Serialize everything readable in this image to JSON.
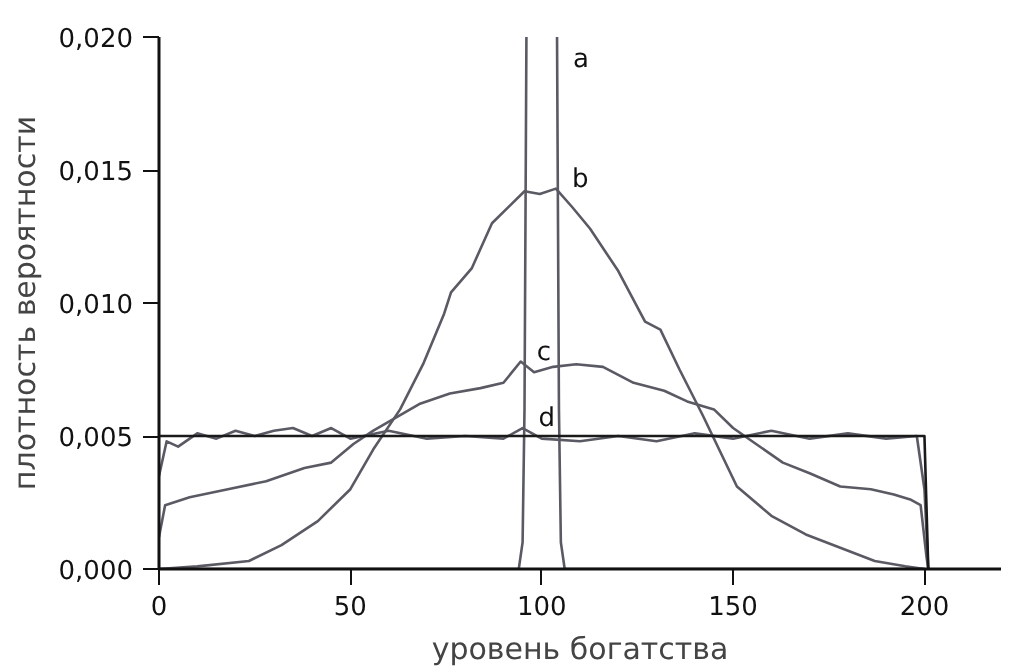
{
  "chart_data": {
    "type": "line",
    "xlabel": "уровень богатства",
    "ylabel": "плотность вероятности",
    "xlim": [
      0,
      220
    ],
    "ylim": [
      0,
      0.02
    ],
    "xticks": [
      0,
      50,
      100,
      150,
      200
    ],
    "yticks": [
      {
        "value": 0,
        "label": "0,000"
      },
      {
        "value": 0.005,
        "label": "0,005"
      },
      {
        "value": 0.01,
        "label": "0,010"
      },
      {
        "value": 0.015,
        "label": "0,015"
      },
      {
        "value": 0.02,
        "label": "0,020"
      }
    ],
    "grid": false,
    "marker": "none",
    "line_style": "solid",
    "series": [
      {
        "name": "a",
        "color": "#5a5a64",
        "x": [
          0,
          90,
          94,
          95,
          95.5,
          96,
          100,
          104,
          104.5,
          105,
          106,
          110,
          200
        ],
        "values": [
          0,
          0,
          0,
          0.001,
          0.006,
          0.02,
          null,
          0.02,
          0.006,
          0.001,
          0,
          0,
          0
        ]
      },
      {
        "name": "b",
        "color": "#5a5a64",
        "x": [
          0,
          10,
          23.5,
          32,
          41.5,
          50,
          56,
          63,
          69,
          74.5,
          76.3,
          81.7,
          87,
          95.5,
          99.5,
          103.7,
          108,
          112.6,
          120,
          127,
          131,
          136,
          142,
          151,
          160,
          169,
          178,
          187,
          195,
          200
        ],
        "values": [
          0,
          0.0001,
          0.0003,
          0.0009,
          0.0018,
          0.003,
          0.0045,
          0.006,
          0.0077,
          0.0096,
          0.0104,
          0.0113,
          0.013,
          0.0142,
          0.0141,
          0.0143,
          0.0136,
          0.0128,
          0.0112,
          0.0093,
          0.009,
          0.0075,
          0.0058,
          0.0031,
          0.002,
          0.0013,
          0.0008,
          0.0003,
          0.0001,
          0
        ]
      },
      {
        "name": "c",
        "color": "#5a5a64",
        "x": [
          0,
          1.6,
          8,
          18,
          28,
          38,
          45,
          50.8,
          56,
          62,
          68,
          76,
          84,
          90,
          94.5,
          98,
          103,
          109,
          116,
          124,
          132,
          138,
          145,
          150,
          156,
          163,
          170,
          178,
          186,
          192,
          196.5,
          199,
          200.5,
          201
        ],
        "values": [
          0.0012,
          0.0024,
          0.0027,
          0.003,
          0.0033,
          0.0038,
          0.004,
          0.0047,
          0.0052,
          0.0057,
          0.0062,
          0.0066,
          0.0068,
          0.007,
          0.0078,
          0.0074,
          0.0076,
          0.0077,
          0.0076,
          0.007,
          0.0067,
          0.0063,
          0.006,
          0.0053,
          0.0047,
          0.004,
          0.0036,
          0.0031,
          0.003,
          0.0028,
          0.0026,
          0.0024,
          0.0005,
          0
        ]
      },
      {
        "name": "d",
        "color": "#5a5a64",
        "x": [
          0,
          2,
          5,
          10,
          15,
          20,
          25,
          30,
          35,
          40,
          45,
          50,
          60,
          70,
          80,
          90,
          95,
          100,
          110,
          120,
          130,
          140,
          150,
          160,
          170,
          180,
          190,
          198,
          200,
          201
        ],
        "values": [
          0.0035,
          0.0048,
          0.0046,
          0.0051,
          0.0049,
          0.0052,
          0.005,
          0.0052,
          0.0053,
          0.005,
          0.0053,
          0.0049,
          0.0052,
          0.0049,
          0.005,
          0.0049,
          0.0053,
          0.0049,
          0.0048,
          0.005,
          0.0048,
          0.0051,
          0.0049,
          0.0052,
          0.0049,
          0.0051,
          0.0049,
          0.005,
          0.003,
          0
        ]
      },
      {
        "color": "#1a1a1a",
        "x": [
          0,
          200,
          201
        ],
        "values": [
          0.005,
          0.005,
          0
        ]
      }
    ]
  }
}
